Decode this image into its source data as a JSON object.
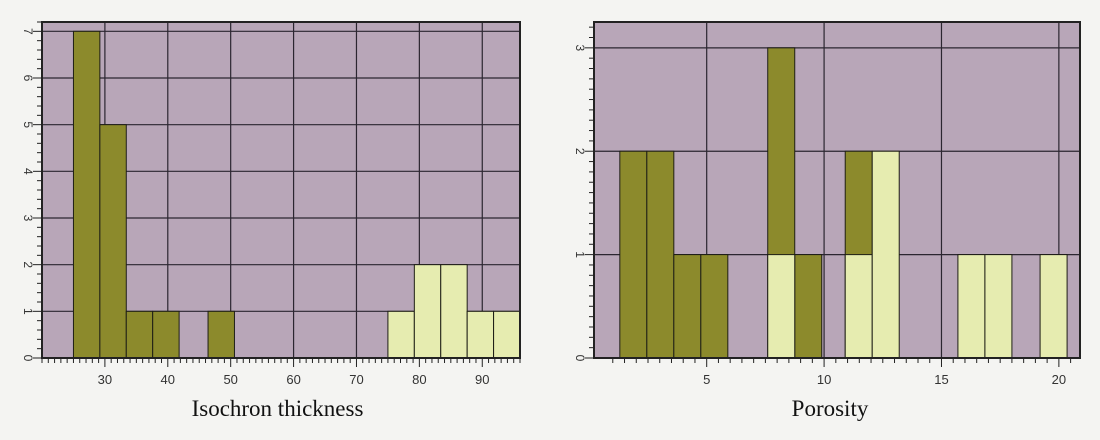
{
  "colors": {
    "plot_bg": "#b8a6b8",
    "grid": "#2b2630",
    "bar_dark": "#8c8a2c",
    "bar_light": "#e6ecb0",
    "axis": "#222222",
    "tick_text": "#333333"
  },
  "chart_data": [
    {
      "type": "bar",
      "xlabel": "Isochron thickness",
      "ylabel": "",
      "xlim": [
        20,
        96
      ],
      "ylim": [
        0,
        7.2
      ],
      "xticks": [
        30,
        40,
        50,
        60,
        70,
        80,
        90
      ],
      "yticks": [
        0,
        1,
        2,
        3,
        4,
        5,
        6,
        7
      ],
      "bin_width": 4.2,
      "series": [
        {
          "style": "dark",
          "bins": [
            {
              "x": 25,
              "value": 7
            },
            {
              "x": 29.2,
              "value": 5
            },
            {
              "x": 33.4,
              "value": 1
            },
            {
              "x": 37.6,
              "value": 1
            },
            {
              "x": 46.4,
              "value": 1
            }
          ]
        },
        {
          "style": "light",
          "bins": [
            {
              "x": 75,
              "value": 1
            },
            {
              "x": 79.2,
              "value": 2
            },
            {
              "x": 83.4,
              "value": 2
            },
            {
              "x": 87.6,
              "value": 1
            },
            {
              "x": 91.8,
              "value": 1
            }
          ]
        }
      ],
      "grid": true
    },
    {
      "type": "bar",
      "xlabel": "Porosity",
      "ylabel": "",
      "xlim": [
        0.2,
        20.9
      ],
      "ylim": [
        0,
        3.25
      ],
      "xticks": [
        5,
        10,
        15,
        20
      ],
      "yticks": [
        0,
        1,
        2,
        3
      ],
      "bin_width": 1.15,
      "series": [
        {
          "style": "dark",
          "bins": [
            {
              "x": 1.3,
              "value": 2
            },
            {
              "x": 2.45,
              "value": 2
            },
            {
              "x": 3.6,
              "value": 1
            },
            {
              "x": 4.75,
              "value": 1
            },
            {
              "x": 7.6,
              "value": 3
            },
            {
              "x": 8.75,
              "value": 1
            },
            {
              "x": 10.9,
              "value": 2
            }
          ]
        },
        {
          "style": "light",
          "bins": [
            {
              "x": 7.6,
              "value": 1
            },
            {
              "x": 10.9,
              "value": 1
            },
            {
              "x": 12.05,
              "value": 2
            },
            {
              "x": 15.7,
              "value": 1
            },
            {
              "x": 16.85,
              "value": 1
            },
            {
              "x": 19.2,
              "value": 1
            }
          ]
        }
      ],
      "grid": true
    }
  ]
}
